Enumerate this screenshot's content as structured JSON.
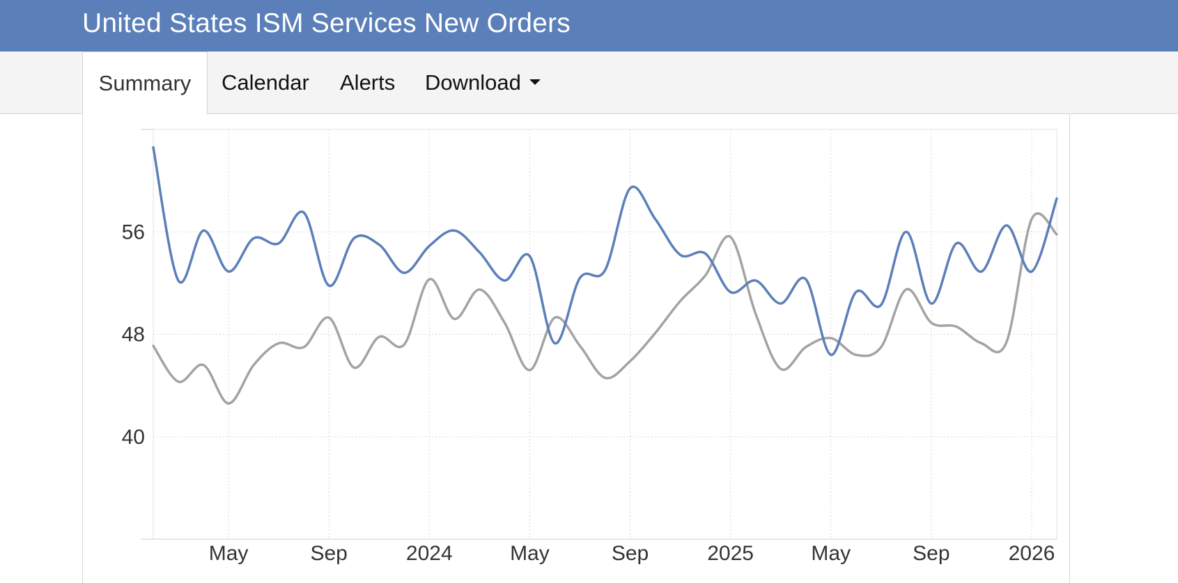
{
  "header": {
    "title": "United States ISM Services New Orders"
  },
  "tabs": [
    {
      "label": "Summary",
      "active": true
    },
    {
      "label": "Calendar",
      "active": false
    },
    {
      "label": "Alerts",
      "active": false
    },
    {
      "label": "Download",
      "active": false,
      "dropdown": true
    }
  ],
  "colors": {
    "header_bg": "#5b7fb8",
    "series_primary": "#5b7fb8",
    "series_secondary": "#a3a3a3"
  },
  "chart_data": {
    "type": "line",
    "title": "",
    "xlabel": "",
    "ylabel": "",
    "grid": true,
    "ylim": [
      32,
      64
    ],
    "y_ticks": [
      40,
      48,
      56
    ],
    "x_ticks": [
      {
        "label": "May",
        "date": "2023-05"
      },
      {
        "label": "Sep",
        "date": "2023-09"
      },
      {
        "label": "2024",
        "date": "2024-01"
      },
      {
        "label": "May",
        "date": "2024-05"
      },
      {
        "label": "Sep",
        "date": "2024-09"
      },
      {
        "label": "2025",
        "date": "2025-01"
      },
      {
        "label": "May",
        "date": "2025-05"
      },
      {
        "label": "Sep",
        "date": "2025-09"
      },
      {
        "label": "2026",
        "date": "2026-01"
      }
    ],
    "x": [
      "2023-02",
      "2023-03",
      "2023-04",
      "2023-05",
      "2023-06",
      "2023-07",
      "2023-08",
      "2023-09",
      "2023-10",
      "2023-11",
      "2023-12",
      "2024-01",
      "2024-02",
      "2024-03",
      "2024-04",
      "2024-05",
      "2024-06",
      "2024-07",
      "2024-08",
      "2024-09",
      "2024-10",
      "2024-11",
      "2024-12",
      "2025-01",
      "2025-02",
      "2025-03",
      "2025-04",
      "2025-05",
      "2025-06",
      "2025-07",
      "2025-08",
      "2025-09",
      "2025-10",
      "2025-11",
      "2025-12",
      "2026-01",
      "2026-02"
    ],
    "series": [
      {
        "values": [
          62.6,
          52.2,
          56.1,
          52.9,
          55.5,
          55.1,
          57.5,
          51.8,
          55.5,
          55.0,
          52.8,
          54.9,
          56.1,
          54.4,
          52.2,
          54.1,
          47.3,
          52.4,
          53.0,
          59.4,
          57.0,
          54.2,
          54.3,
          51.3,
          52.2,
          50.4,
          52.3,
          46.4,
          51.3,
          50.3,
          56.0,
          50.4,
          55.1,
          52.9,
          56.5,
          52.9,
          58.6
        ]
      },
      {
        "values": [
          47.1,
          44.3,
          45.6,
          42.6,
          45.6,
          47.3,
          47.0,
          49.3,
          45.4,
          47.8,
          47.2,
          52.3,
          49.2,
          51.5,
          48.9,
          45.2,
          49.3,
          47.1,
          44.6,
          45.9,
          48.1,
          50.6,
          52.6,
          55.6,
          49.6,
          45.3,
          47.0,
          47.7,
          46.4,
          47.0,
          51.5,
          48.9,
          48.6,
          47.3,
          47.4,
          57.0,
          55.8
        ]
      }
    ]
  }
}
